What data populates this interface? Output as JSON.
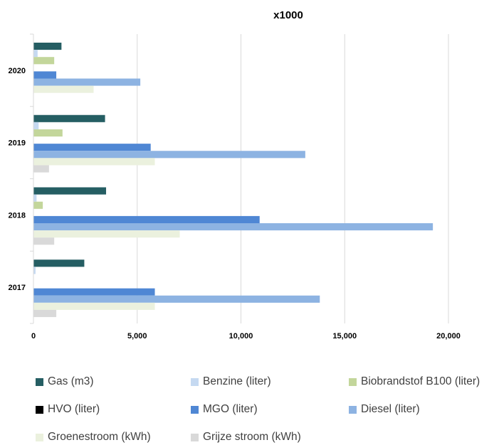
{
  "chart_data": {
    "type": "bar",
    "orientation": "horizontal",
    "title": "x1000",
    "categories": [
      "2020",
      "2019",
      "2018",
      "2017"
    ],
    "xlim": [
      0,
      20000
    ],
    "xticks": [
      "0",
      "5,000",
      "10,000",
      "15,000",
      "20,000"
    ],
    "grid": true,
    "legend_position": "bottom",
    "series": [
      {
        "name": "Gas (m3)",
        "color": "#255E63",
        "values": [
          1350,
          3450,
          3500,
          2450
        ]
      },
      {
        "name": "Benzine (liter)",
        "color": "#C5D9F1",
        "values": [
          200,
          250,
          150,
          100
        ]
      },
      {
        "name": "Biobrandstof B100 (liter)",
        "color": "#C3D69B",
        "values": [
          1000,
          1400,
          450,
          0
        ]
      },
      {
        "name": "HVO (liter)",
        "color": "#000000",
        "values": [
          0,
          0,
          0,
          0
        ]
      },
      {
        "name": "MGO (liter)",
        "color": "#4F87D4",
        "values": [
          1100,
          5650,
          10900,
          5850
        ]
      },
      {
        "name": "Diesel (liter)",
        "color": "#8DB3E2",
        "values": [
          5150,
          13100,
          19250,
          13800
        ]
      },
      {
        "name": "Groenestroom (kWh)",
        "color": "#EBF1DE",
        "values": [
          2900,
          5850,
          7050,
          5850
        ]
      },
      {
        "name": "Grijze stroom (kWh)",
        "color": "#D9D9D9",
        "values": [
          0,
          750,
          1000,
          1100
        ]
      }
    ]
  }
}
